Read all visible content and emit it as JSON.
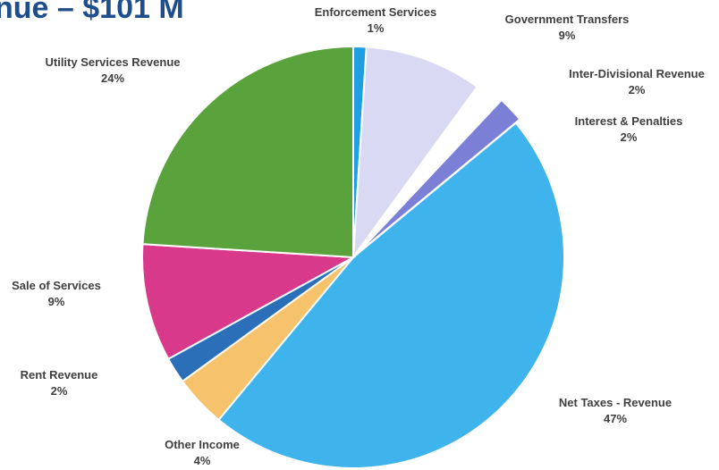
{
  "chart_data": {
    "type": "pie",
    "title": "nue – $101 M",
    "slices": [
      {
        "label": "Enforcement Services",
        "value": 1,
        "value_label": "1%",
        "color": "#1f9fe0"
      },
      {
        "label": "Government Transfers",
        "value": 9,
        "value_label": "9%",
        "color": "#d9d9f3"
      },
      {
        "label": "Inter-Divisional Revenue",
        "value": 2,
        "value_label": "2%",
        "color": "#ffffff"
      },
      {
        "label": "Interest & Penalties",
        "value": 2,
        "value_label": "2%",
        "color": "#7b7fd6"
      },
      {
        "label": "Net Taxes - Revenue",
        "value": 47,
        "value_label": "47%",
        "color": "#3fb4ec"
      },
      {
        "label": "Other Income",
        "value": 4,
        "value_label": "4%",
        "color": "#f6c26b"
      },
      {
        "label": "Rent Revenue",
        "value": 2,
        "value_label": "2%",
        "color": "#2a6fb8"
      },
      {
        "label": "Sale of Services",
        "value": 9,
        "value_label": "9%",
        "color": "#d9398a"
      },
      {
        "label": "Utility Services Revenue",
        "value": 24,
        "value_label": "24%",
        "color": "#5aa23c"
      }
    ]
  }
}
